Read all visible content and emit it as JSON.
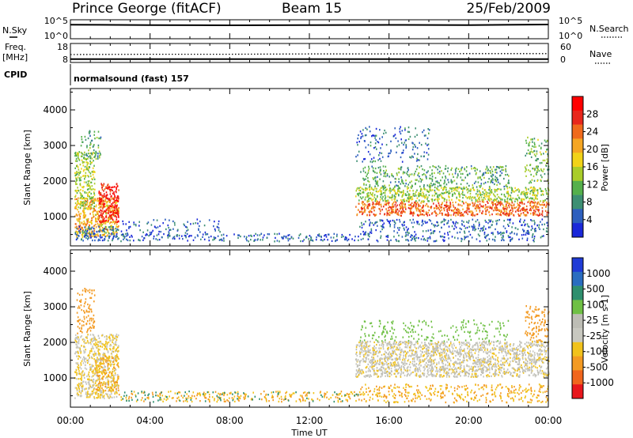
{
  "header": {
    "station": "Prince George (fitACF)",
    "beam": "Beam 15",
    "date": "25/Feb/2009"
  },
  "status_panels": {
    "left_labels": {
      "nsky": "N.Sky",
      "freq": "Freq.",
      "freq_unit": "[MHz]",
      "cpid": "CPID"
    },
    "right_labels": {
      "nsearch": "N.Search",
      "nave": "Nave"
    },
    "noise_left_ticks": [
      "10^5",
      "10^0"
    ],
    "noise_right_ticks": [
      "10^5",
      "10^0"
    ],
    "freq_ticks": [
      "18",
      "8"
    ],
    "nave_ticks": [
      "60",
      "0"
    ],
    "cpid_text": "normalsound (fast) 157"
  },
  "colors": {
    "power_scale": [
      "#1a28d9",
      "#2d5fbe",
      "#3d8f73",
      "#55b04c",
      "#a9cd2a",
      "#f1d319",
      "#f5a623",
      "#f06a1c",
      "#e8271c",
      "#ff0000"
    ],
    "velocity_scale": [
      "#1f3bd6",
      "#2a6dc0",
      "#2f8f6e",
      "#6fc044",
      "#bdbdb5",
      "#c8c8c0",
      "#f1c21c",
      "#f39a22",
      "#f0651d",
      "#e8161c"
    ]
  },
  "chart_data": [
    {
      "type": "heatmap",
      "name": "power",
      "x_unit": "Time UT",
      "xlabel": "Time UT",
      "ylabel": "Slant Range [km]",
      "xlim": [
        "00:00",
        "24:00"
      ],
      "ylim": [
        180,
        4600
      ],
      "x_ticks": [
        "00:00",
        "04:00",
        "08:00",
        "12:00",
        "16:00",
        "20:00",
        "00:00"
      ],
      "y_ticks": [
        1000,
        2000,
        3000,
        4000
      ],
      "colorbar": {
        "label": "Power [dB]",
        "ticks": [
          28,
          24,
          20,
          16,
          12,
          8,
          4
        ],
        "range": [
          0,
          32
        ]
      },
      "scatter_regions": [
        {
          "t0": 0.2,
          "t1": 2.4,
          "r0": 400,
          "r1": 1500,
          "level": 20,
          "density": 0.85
        },
        {
          "t0": 1.4,
          "t1": 2.4,
          "r0": 800,
          "r1": 1900,
          "level": 28,
          "density": 0.9
        },
        {
          "t0": 0.2,
          "t1": 1.2,
          "r0": 1200,
          "r1": 2800,
          "level": 14,
          "density": 0.7
        },
        {
          "t0": 0.5,
          "t1": 1.5,
          "r0": 2600,
          "r1": 3400,
          "level": 10,
          "density": 0.4
        },
        {
          "t0": 0.2,
          "t1": 2.4,
          "r0": 300,
          "r1": 700,
          "level": 6,
          "density": 0.7
        },
        {
          "t0": 2.4,
          "t1": 14.5,
          "r0": 280,
          "r1": 500,
          "level": 5,
          "density": 0.35
        },
        {
          "t0": 2.4,
          "t1": 7.5,
          "r0": 400,
          "r1": 900,
          "level": 5,
          "density": 0.2
        },
        {
          "t0": 14.3,
          "t1": 24.0,
          "r0": 1000,
          "r1": 1400,
          "level": 24,
          "density": 0.9
        },
        {
          "t0": 14.3,
          "t1": 24.0,
          "r0": 1400,
          "r1": 1800,
          "level": 14,
          "density": 0.75
        },
        {
          "t0": 14.5,
          "t1": 22.0,
          "r0": 1800,
          "r1": 2400,
          "level": 10,
          "density": 0.4
        },
        {
          "t0": 14.3,
          "t1": 18.0,
          "r0": 2500,
          "r1": 3500,
          "level": 6,
          "density": 0.2
        },
        {
          "t0": 14.5,
          "t1": 24.0,
          "r0": 280,
          "r1": 900,
          "level": 5,
          "density": 0.35
        },
        {
          "t0": 22.8,
          "t1": 24.0,
          "r0": 1900,
          "r1": 3200,
          "level": 12,
          "density": 0.35
        }
      ]
    },
    {
      "type": "heatmap",
      "name": "velocity",
      "xlabel": "Time UT",
      "ylabel": "Slant Range [km]",
      "xlim": [
        "00:00",
        "24:00"
      ],
      "ylim": [
        180,
        4600
      ],
      "x_ticks": [
        "00:00",
        "04:00",
        "08:00",
        "12:00",
        "16:00",
        "20:00",
        "00:00"
      ],
      "y_ticks": [
        1000,
        2000,
        3000,
        4000
      ],
      "colorbar": {
        "label": "Velocity [m s-1]",
        "ticks": [
          1000,
          500,
          100,
          25,
          -25,
          -100,
          -500,
          -1000
        ]
      },
      "scatter_regions": [
        {
          "t0": 0.2,
          "t1": 2.4,
          "r0": 400,
          "r1": 2200,
          "vel": -25,
          "density": 0.8
        },
        {
          "t0": 1.2,
          "t1": 2.4,
          "r0": 600,
          "r1": 1600,
          "vel": -100,
          "density": 0.6
        },
        {
          "t0": 0.3,
          "t1": 1.2,
          "r0": 2200,
          "r1": 3500,
          "vel": -300,
          "density": 0.4
        },
        {
          "t0": 2.4,
          "t1": 14.5,
          "r0": 300,
          "r1": 600,
          "vel": -100,
          "density": 0.35
        },
        {
          "t0": 2.4,
          "t1": 14.5,
          "r0": 300,
          "r1": 600,
          "vel": 200,
          "density": 0.1
        },
        {
          "t0": 14.3,
          "t1": 24.0,
          "r0": 1000,
          "r1": 2000,
          "vel": -10,
          "density": 0.9
        },
        {
          "t0": 14.5,
          "t1": 24.0,
          "r0": 280,
          "r1": 800,
          "vel": -100,
          "density": 0.35
        },
        {
          "t0": 14.5,
          "t1": 22.0,
          "r0": 2000,
          "r1": 2600,
          "vel": 60,
          "density": 0.2
        },
        {
          "t0": 22.8,
          "t1": 24.0,
          "r0": 2000,
          "r1": 3000,
          "vel": -150,
          "density": 0.4
        }
      ]
    },
    {
      "type": "line",
      "name": "noise-sky-search",
      "ylim_log10": [
        0,
        5
      ],
      "series": [
        {
          "label": "N.Sky",
          "t": [
            0,
            4,
            8,
            12,
            16,
            20,
            24
          ],
          "log10": [
            3.7,
            3.6,
            3.55,
            3.6,
            3.65,
            3.6,
            3.75
          ]
        }
      ]
    },
    {
      "type": "line",
      "name": "freq-nave",
      "series": [
        {
          "label": "Freq.",
          "t": [
            0,
            4,
            8,
            12,
            16,
            20,
            24
          ],
          "mhz": [
            9.8,
            9.8,
            9.8,
            9.8,
            9.8,
            9.8,
            9.8
          ]
        },
        {
          "label": "Nave",
          "t": [
            0,
            4,
            8,
            12,
            16,
            20,
            24
          ],
          "count": [
            25,
            26,
            26,
            27,
            27,
            28,
            28
          ]
        }
      ]
    }
  ]
}
